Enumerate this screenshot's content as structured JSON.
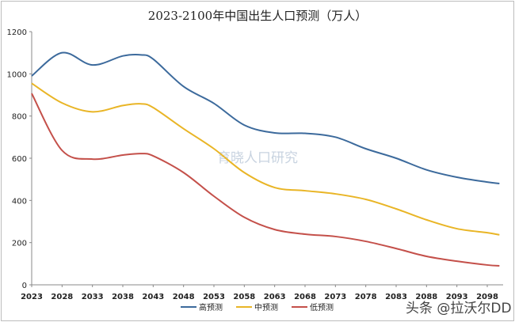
{
  "chart_data": {
    "type": "line",
    "title": "2023-2100年中国出生人口预测（万人）",
    "xlabel": "",
    "ylabel": "",
    "ylim": [
      0,
      1200
    ],
    "yticks": [
      0,
      200,
      400,
      600,
      800,
      1000,
      1200
    ],
    "xticks": [
      2023,
      2028,
      2033,
      2038,
      2043,
      2048,
      2053,
      2058,
      2063,
      2068,
      2073,
      2078,
      2083,
      2088,
      2093,
      2098
    ],
    "xlim": [
      2023,
      2100
    ],
    "grid": false,
    "legend": "bottom",
    "x": [
      2023,
      2028,
      2033,
      2038,
      2041,
      2043,
      2048,
      2053,
      2058,
      2063,
      2068,
      2073,
      2078,
      2083,
      2088,
      2093,
      2098,
      2100
    ],
    "series": [
      {
        "name": "高预测",
        "color": "#3c6a9c",
        "values": [
          990,
          1100,
          1042,
          1085,
          1090,
          1070,
          940,
          860,
          757,
          720,
          718,
          700,
          645,
          600,
          545,
          510,
          487,
          480
        ]
      },
      {
        "name": "中预测",
        "color": "#e9b526",
        "values": [
          955,
          862,
          820,
          850,
          858,
          840,
          740,
          645,
          532,
          461,
          446,
          431,
          405,
          360,
          308,
          266,
          247,
          237
        ]
      },
      {
        "name": "低预测",
        "color": "#c4504a",
        "values": [
          907,
          637,
          596,
          615,
          622,
          611,
          532,
          420,
          320,
          262,
          240,
          229,
          206,
          172,
          135,
          112,
          94,
          90
        ]
      }
    ],
    "watermark": "育晓人口研究"
  },
  "credit": "头条 @拉沃尔DD"
}
